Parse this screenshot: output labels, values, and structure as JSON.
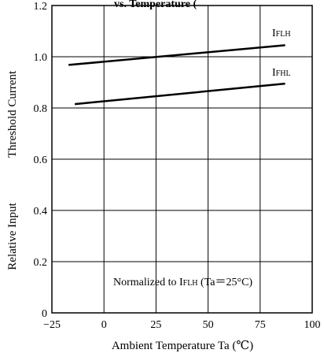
{
  "chart_data": {
    "type": "line",
    "title_fragment": "vs. Temperature (",
    "xlabel": "Ambient Temperature Ta (℃)",
    "ylabel_parts": [
      "Relative Input",
      "Threshold Current"
    ],
    "xlim": [
      -25,
      100
    ],
    "ylim": [
      0,
      1.2
    ],
    "xticks": [
      "−25",
      "0",
      "25",
      "50",
      "75",
      "100"
    ],
    "xtick_values": [
      -25,
      0,
      25,
      50,
      75,
      100
    ],
    "yticks": [
      "0",
      "0.2",
      "0.4",
      "0.6",
      "0.8",
      "1.0",
      "1.2"
    ],
    "ytick_values": [
      0,
      0.2,
      0.4,
      0.6,
      0.8,
      1.0,
      1.2
    ],
    "grid": true,
    "series": [
      {
        "name": "I_FLH",
        "label_main": "I",
        "label_sub": "FLH",
        "x": [
          -17,
          87
        ],
        "y": [
          0.968,
          1.045
        ]
      },
      {
        "name": "I_FHL",
        "label_main": "I",
        "label_sub": "FHL",
        "x": [
          -14,
          87
        ],
        "y": [
          0.815,
          0.895
        ]
      }
    ],
    "annotation": {
      "pre": "Normalized to I",
      "sub": "FLH",
      "post": " (Ta＝25°C)"
    }
  }
}
